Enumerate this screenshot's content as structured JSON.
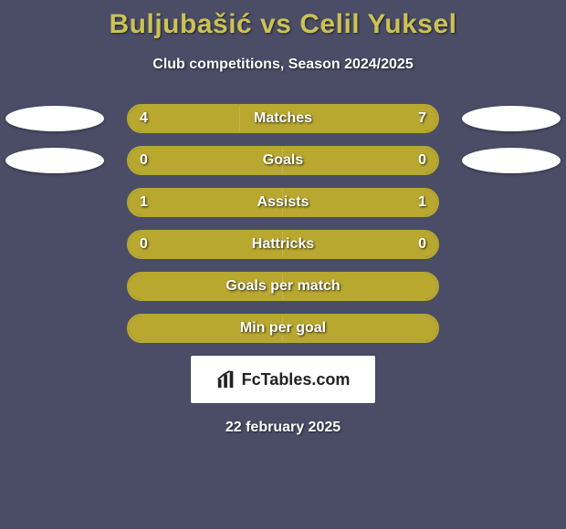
{
  "title": "Buljubašić vs Celil Yuksel",
  "subtitle": "Club competitions, Season 2024/2025",
  "date": "22 february 2025",
  "colors": {
    "background": "#4b4d67",
    "accent": "#cbc255",
    "bar_fill": "#b8a82f",
    "bar_border": "#b8a82f",
    "ellipse": "#ffffff",
    "text": "#ffffff",
    "brand_bg": "#ffffff",
    "brand_text": "#222222"
  },
  "layout": {
    "bar_track_width": 342,
    "bar_track_height": 32,
    "bar_radius": 16,
    "row_gap": 14,
    "title_fontsize": 30,
    "label_fontsize": 16
  },
  "stats": [
    {
      "label": "Matches",
      "left_val": "4",
      "right_val": "7",
      "left_pct": 36,
      "right_pct": 64,
      "show_vals": true,
      "ellipses": true
    },
    {
      "label": "Goals",
      "left_val": "0",
      "right_val": "0",
      "left_pct": 50,
      "right_pct": 50,
      "show_vals": true,
      "ellipses": true,
      "fill_full": true
    },
    {
      "label": "Assists",
      "left_val": "1",
      "right_val": "1",
      "left_pct": 50,
      "right_pct": 50,
      "show_vals": true,
      "ellipses": false,
      "fill_full": true
    },
    {
      "label": "Hattricks",
      "left_val": "0",
      "right_val": "0",
      "left_pct": 50,
      "right_pct": 50,
      "show_vals": true,
      "ellipses": false,
      "fill_full": true
    },
    {
      "label": "Goals per match",
      "left_val": "",
      "right_val": "",
      "left_pct": 50,
      "right_pct": 50,
      "show_vals": false,
      "ellipses": false,
      "fill_full": true
    },
    {
      "label": "Min per goal",
      "left_val": "",
      "right_val": "",
      "left_pct": 50,
      "right_pct": 50,
      "show_vals": false,
      "ellipses": false,
      "fill_full": true
    }
  ],
  "brand": {
    "text": "FcTables.com",
    "icon_name": "bar-chart-icon"
  }
}
